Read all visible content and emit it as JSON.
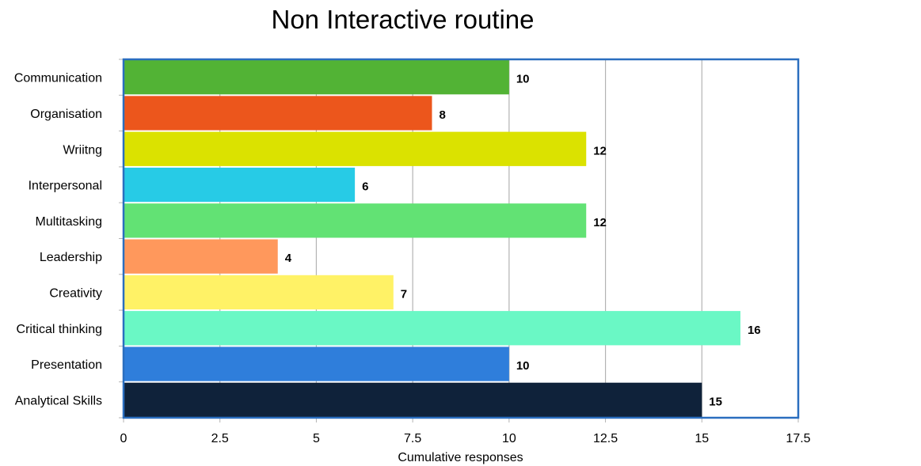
{
  "chart_data": {
    "type": "bar",
    "orientation": "horizontal",
    "title": "Non Interactive routine",
    "xlabel": "Cumulative responses",
    "ylabel": "",
    "categories": [
      "Communication",
      "Organisation",
      "Wriitng",
      "Interpersonal",
      "Multitasking",
      "Leadership",
      "Creativity",
      "Critical thinking",
      "Presentation",
      "Analytical Skills"
    ],
    "values": [
      10,
      8,
      12,
      6,
      12,
      4,
      7,
      16,
      10,
      15
    ],
    "bar_colors": [
      "#52b335",
      "#ec561c",
      "#dbe200",
      "#27cbe6",
      "#62e274",
      "#ff985c",
      "#fff266",
      "#6af8c5",
      "#2f7edb",
      "#0f223a"
    ],
    "xlim": [
      0,
      17.5
    ],
    "xticks": [
      0,
      2.5,
      5,
      7.5,
      10,
      12.5,
      15,
      17.5
    ],
    "xtick_labels": [
      "0",
      "2.5",
      "5",
      "7.5",
      "10",
      "12.5",
      "15",
      "17.5"
    ],
    "grid": "vertical",
    "data_labels": true,
    "legend": "none",
    "plot_border_color": "#2a6ebf",
    "gridline_color": "#b3b3b3"
  }
}
